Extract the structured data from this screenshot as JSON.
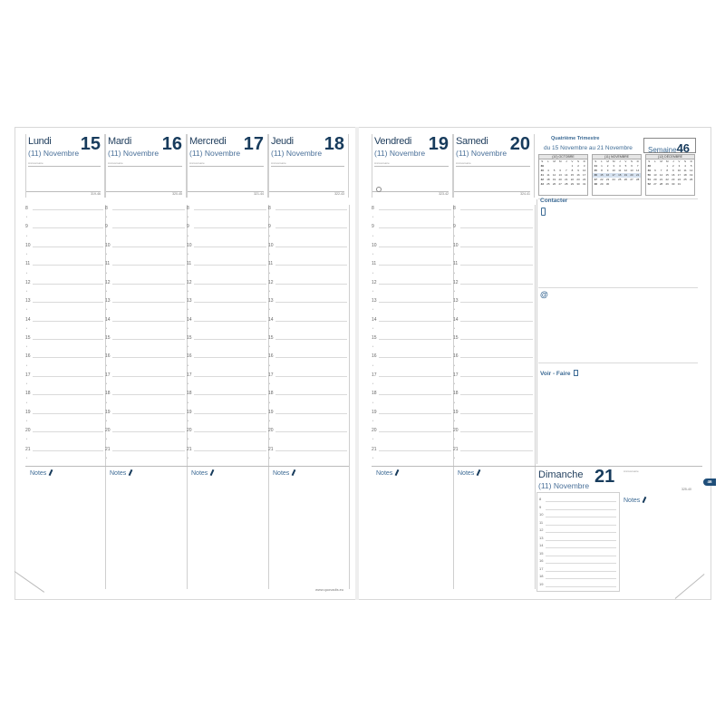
{
  "days": [
    {
      "name": "Lundi",
      "num": "15",
      "month": "(11) Novembre",
      "code": "319-46"
    },
    {
      "name": "Mardi",
      "num": "16",
      "month": "(11) Novembre",
      "code": "320-45"
    },
    {
      "name": "Mercredi",
      "num": "17",
      "month": "(11) Novembre",
      "code": "321-44"
    },
    {
      "name": "Jeudi",
      "num": "18",
      "month": "(11) Novembre",
      "code": "322-43"
    },
    {
      "name": "Vendredi",
      "num": "19",
      "month": "(11) Novembre",
      "code": "323-42"
    },
    {
      "name": "Samedi",
      "num": "20",
      "month": "(11) Novembre",
      "code": "324-41"
    }
  ],
  "sunday": {
    "name": "Dimanche",
    "num": "21",
    "month": "(11) Novembre",
    "code": "325-40"
  },
  "anniversaire_label": "Anniversaire",
  "hours": [
    "8",
    "9",
    "10",
    "11",
    "12",
    "13",
    "14",
    "15",
    "16",
    "17",
    "18",
    "19",
    "20",
    "21"
  ],
  "sunday_hours": [
    "8",
    "9",
    "10",
    "11",
    "12",
    "13",
    "14",
    "15",
    "16",
    "17",
    "18",
    "19"
  ],
  "notes_label": "Notes",
  "quarter": {
    "title": "Quatrième Trimestre",
    "range": "du 15 Novembre au 21 Novembre"
  },
  "week": {
    "label": "Semaine",
    "num": "46"
  },
  "week_tab": "46",
  "mini_calendars": [
    {
      "title": "(10) OCTOBRE",
      "weeks": [
        [
          "39",
          "",
          "",
          "",
          "",
          "1",
          "2",
          "3"
        ],
        [
          "40",
          "4",
          "5",
          "6",
          "7",
          "8",
          "9",
          "10"
        ],
        [
          "41",
          "11",
          "12",
          "13",
          "14",
          "15",
          "16",
          "17"
        ],
        [
          "42",
          "18",
          "19",
          "20",
          "21",
          "22",
          "23",
          "24"
        ],
        [
          "43",
          "25",
          "26",
          "27",
          "28",
          "29",
          "30",
          "31"
        ]
      ]
    },
    {
      "title": "(11) NOVEMBRE",
      "weeks": [
        [
          "44",
          "1",
          "2",
          "3",
          "4",
          "5",
          "6",
          "7"
        ],
        [
          "45",
          "8",
          "9",
          "10",
          "11",
          "12",
          "13",
          "14"
        ],
        [
          "46",
          "15",
          "16",
          "17",
          "18",
          "19",
          "20",
          "21"
        ],
        [
          "47",
          "22",
          "23",
          "24",
          "25",
          "26",
          "27",
          "28"
        ],
        [
          "48",
          "29",
          "30",
          "",
          "",
          "",
          "",
          ""
        ]
      ]
    },
    {
      "title": "(12) DÉCEMBRE",
      "weeks": [
        [
          "48",
          "",
          "",
          "1",
          "2",
          "3",
          "4",
          "5"
        ],
        [
          "49",
          "6",
          "7",
          "8",
          "9",
          "10",
          "11",
          "12"
        ],
        [
          "50",
          "13",
          "14",
          "15",
          "16",
          "17",
          "18",
          "19"
        ],
        [
          "51",
          "20",
          "21",
          "22",
          "23",
          "24",
          "25",
          "26"
        ],
        [
          "52",
          "27",
          "28",
          "29",
          "30",
          "31",
          "",
          ""
        ]
      ]
    }
  ],
  "weekday_letters": [
    "S",
    "L",
    "M",
    "M",
    "J",
    "V",
    "S",
    "D"
  ],
  "sections": {
    "contact": "Contacter",
    "email": "@",
    "todo": "Voir - Faire"
  },
  "footer": "www.quovadis.eu",
  "colors": {
    "navy": "#173b5c",
    "blue": "#3d6b95",
    "tab": "#1f4e79"
  }
}
